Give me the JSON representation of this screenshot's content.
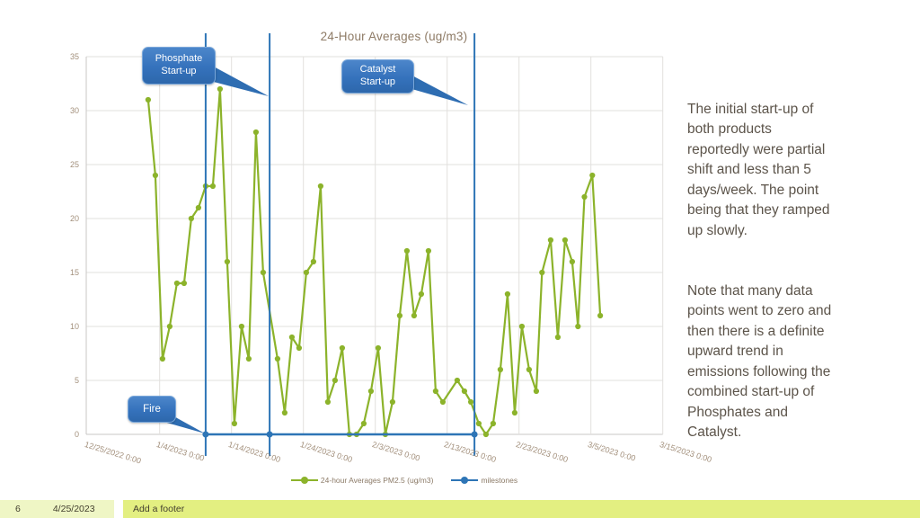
{
  "slide": {
    "footer": {
      "page_number": "6",
      "date": "4/25/2023",
      "footer_text": "Add a footer"
    },
    "notes": {
      "para1": "The initial start-up of\nboth products\nreportedly were partial\nshift and less than 5\ndays/week. The point\nbeing that they ramped\nup slowly.",
      "para2": "Note that many data\npoints went to zero and\nthen there is a definite\nupward trend in\nemissions following the\ncombined start-up of\nPhosphates and\nCatalyst."
    }
  },
  "chart_data": {
    "type": "line",
    "title": "24-Hour Averages (ug/m3)",
    "x_axis": {
      "tick_labels": [
        "12/25/2022 0:00",
        "1/4/2023 0:00",
        "1/14/2023 0:00",
        "1/24/2023 0:00",
        "2/3/2023 0:00",
        "2/13/2023 0:00",
        "2/23/2023 0:00",
        "3/5/2023 0:00",
        "3/15/2023 0:00"
      ],
      "tick_days": [
        0,
        10,
        20,
        30,
        40,
        50,
        60,
        70,
        80
      ],
      "unit": "days since 12/25/2022 0:00"
    },
    "y_axis": {
      "ticks": [
        0,
        5,
        10,
        15,
        20,
        25,
        30,
        35
      ],
      "min": 0,
      "max": 35
    },
    "grid": true,
    "legend_position": "bottom",
    "series": [
      {
        "name": "24-hour Averages PM2.5 (ug/m3)",
        "color": "#8CB32B",
        "points": [
          [
            8.4,
            31
          ],
          [
            9.4,
            24
          ],
          [
            10.4,
            7
          ],
          [
            11.4,
            10
          ],
          [
            12.4,
            14
          ],
          [
            13.4,
            14
          ],
          [
            14.4,
            20
          ],
          [
            15.4,
            21
          ],
          [
            16.4,
            23
          ],
          [
            17.4,
            23
          ],
          [
            18.4,
            32
          ],
          [
            19.4,
            16
          ],
          [
            20.4,
            1
          ],
          [
            21.4,
            10
          ],
          [
            22.4,
            7
          ],
          [
            23.4,
            28
          ],
          [
            24.4,
            15
          ],
          [
            26.4,
            7
          ],
          [
            27.4,
            2
          ],
          [
            28.4,
            9
          ],
          [
            29.4,
            8
          ],
          [
            30.4,
            15
          ],
          [
            31.4,
            16
          ],
          [
            32.4,
            23
          ],
          [
            33.4,
            3
          ],
          [
            34.4,
            5
          ],
          [
            35.4,
            8
          ],
          [
            36.4,
            0
          ],
          [
            37.4,
            0
          ],
          [
            38.4,
            1
          ],
          [
            39.4,
            4
          ],
          [
            40.4,
            8
          ],
          [
            41.4,
            0
          ],
          [
            42.4,
            3
          ],
          [
            43.4,
            11
          ],
          [
            44.4,
            17
          ],
          [
            45.4,
            11
          ],
          [
            46.4,
            13
          ],
          [
            47.4,
            17
          ],
          [
            48.4,
            4
          ],
          [
            49.4,
            3
          ],
          [
            51.4,
            5
          ],
          [
            52.4,
            4
          ],
          [
            53.3,
            3
          ],
          [
            54.4,
            1
          ],
          [
            55.4,
            0
          ],
          [
            56.4,
            1
          ],
          [
            57.4,
            6
          ],
          [
            58.4,
            13
          ],
          [
            59.4,
            2
          ],
          [
            60.4,
            10
          ],
          [
            61.4,
            6
          ],
          [
            62.4,
            4
          ],
          [
            63.2,
            15
          ],
          [
            64.4,
            18
          ],
          [
            65.4,
            9
          ],
          [
            66.4,
            18
          ],
          [
            67.4,
            16
          ],
          [
            68.2,
            10
          ],
          [
            69.1,
            22
          ],
          [
            70.2,
            24
          ],
          [
            71.3,
            11
          ]
        ]
      },
      {
        "name": "milestones",
        "color": "#2E75B6",
        "points": [
          [
            16.4,
            0
          ],
          [
            25.3,
            0
          ],
          [
            53.8,
            0
          ]
        ]
      }
    ],
    "annotations": [
      {
        "label": "Phosphate\nStart-up",
        "target_day": 25.3
      },
      {
        "label": "Catalyst\nStart-up",
        "target_day": 53.8
      },
      {
        "label": "Fire",
        "target_day": 16.4
      }
    ]
  }
}
